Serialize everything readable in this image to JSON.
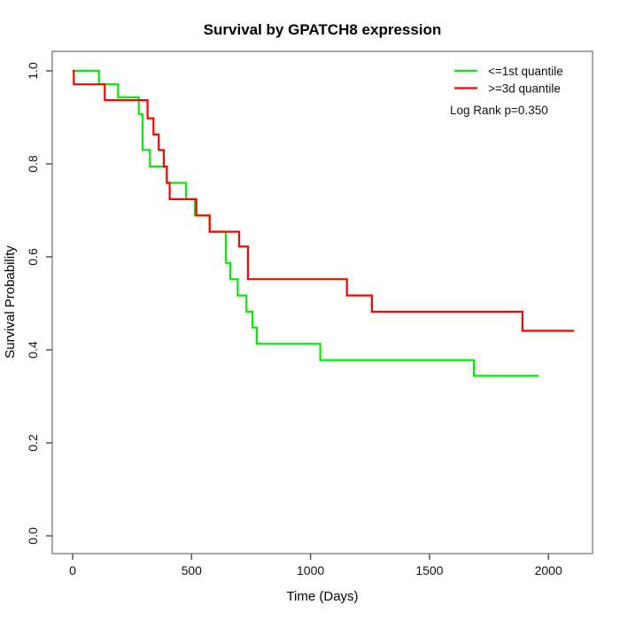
{
  "chart_data": {
    "type": "line",
    "subtype": "kaplan-meier-step",
    "title": "Survival by GPATCH8 expression",
    "xlabel": "Time (Days)",
    "ylabel": "Survival Probability",
    "xlim": [
      0,
      2200
    ],
    "ylim": [
      0,
      1
    ],
    "grid": false,
    "legend_position": "top-right",
    "annotation": "Log Rank p=0.350",
    "x_tick_labels": [
      "0",
      "500",
      "1000",
      "1500",
      "2000"
    ],
    "x_tick_values": [
      0,
      500,
      1000,
      1500,
      2000
    ],
    "y_tick_labels": [
      "0.0",
      "0.2",
      "0.4",
      "0.6",
      "0.8",
      "1.0"
    ],
    "y_tick_values": [
      0,
      0.2,
      0.4,
      0.6,
      0.8,
      1.0
    ],
    "series": [
      {
        "name": "<=1st quantile",
        "color": "#00ee00",
        "end_day": 1960,
        "points": [
          [
            0,
            1.0
          ],
          [
            111,
            0.971
          ],
          [
            191,
            0.943
          ],
          [
            278,
            0.907
          ],
          [
            294,
            0.83
          ],
          [
            325,
            0.794
          ],
          [
            396,
            0.759
          ],
          [
            477,
            0.724
          ],
          [
            514,
            0.689
          ],
          [
            576,
            0.654
          ],
          [
            644,
            0.587
          ],
          [
            663,
            0.552
          ],
          [
            694,
            0.517
          ],
          [
            731,
            0.482
          ],
          [
            756,
            0.448
          ],
          [
            774,
            0.413
          ],
          [
            1041,
            0.378
          ],
          [
            1687,
            0.344
          ]
        ]
      },
      {
        "name": ">=3d quantile",
        "color": "#ff0000",
        "end_day": 2108,
        "points": [
          [
            0,
            1.0
          ],
          [
            5,
            0.971
          ],
          [
            135,
            0.937
          ],
          [
            315,
            0.898
          ],
          [
            340,
            0.863
          ],
          [
            362,
            0.83
          ],
          [
            383,
            0.794
          ],
          [
            396,
            0.759
          ],
          [
            408,
            0.724
          ],
          [
            520,
            0.689
          ],
          [
            576,
            0.654
          ],
          [
            700,
            0.622
          ],
          [
            737,
            0.552
          ],
          [
            1153,
            0.517
          ],
          [
            1258,
            0.482
          ],
          [
            1891,
            0.441
          ]
        ]
      }
    ]
  }
}
